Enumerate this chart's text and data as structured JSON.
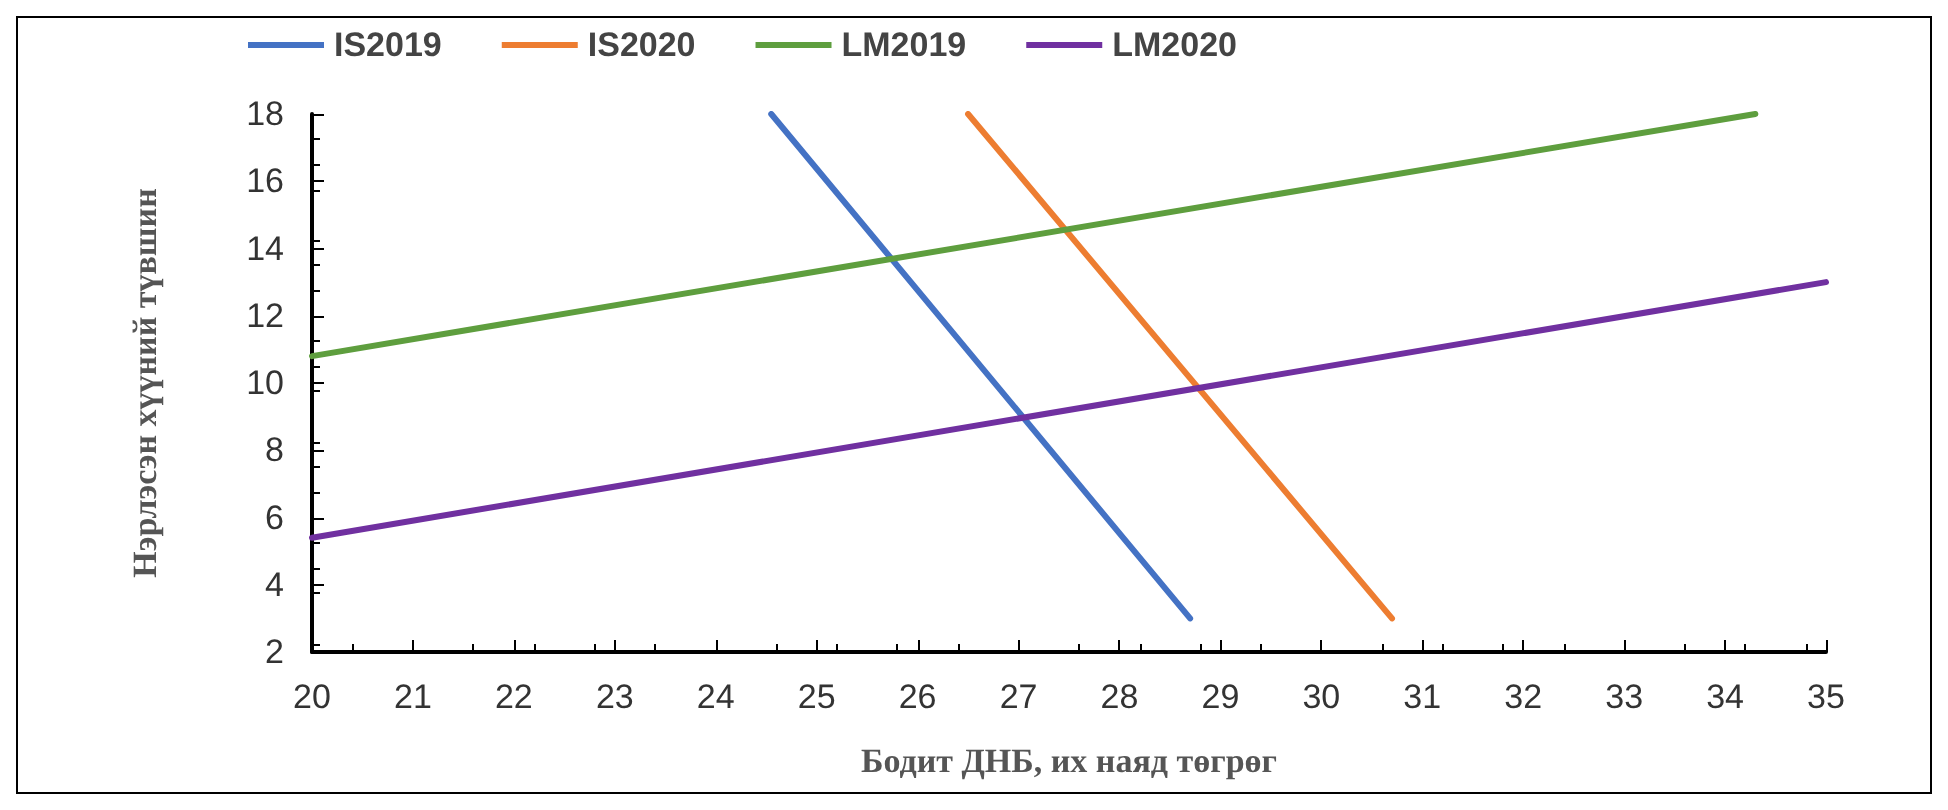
{
  "chart_data": {
    "type": "line",
    "xlabel": "Бодит ДНБ, их наяд төгрөг",
    "ylabel": "Нэрлэсэн хүүний түвшин",
    "xlim": [
      20,
      35
    ],
    "xticks": [
      20,
      21,
      22,
      23,
      24,
      25,
      26,
      27,
      28,
      29,
      30,
      31,
      32,
      33,
      34,
      35
    ],
    "ylim": [
      2,
      18
    ],
    "yticks": [
      2,
      4,
      6,
      8,
      10,
      12,
      14,
      16,
      18
    ],
    "grid": false,
    "legend": "top",
    "marker": "none",
    "line_style": "solid",
    "series": [
      {
        "name": "IS2019",
        "color": "#4472c4",
        "x": [
          24.55,
          28.7
        ],
        "values": [
          18,
          3
        ]
      },
      {
        "name": "IS2020",
        "color": "#ed7d31",
        "x": [
          26.5,
          30.7
        ],
        "values": [
          18,
          3
        ]
      },
      {
        "name": "LM2019",
        "color": "#5e9e3e",
        "x": [
          20,
          34.3
        ],
        "values": [
          10.8,
          18
        ]
      },
      {
        "name": "LM2020",
        "color": "#7030a0",
        "x": [
          20,
          35
        ],
        "values": [
          5.4,
          13
        ]
      }
    ]
  }
}
